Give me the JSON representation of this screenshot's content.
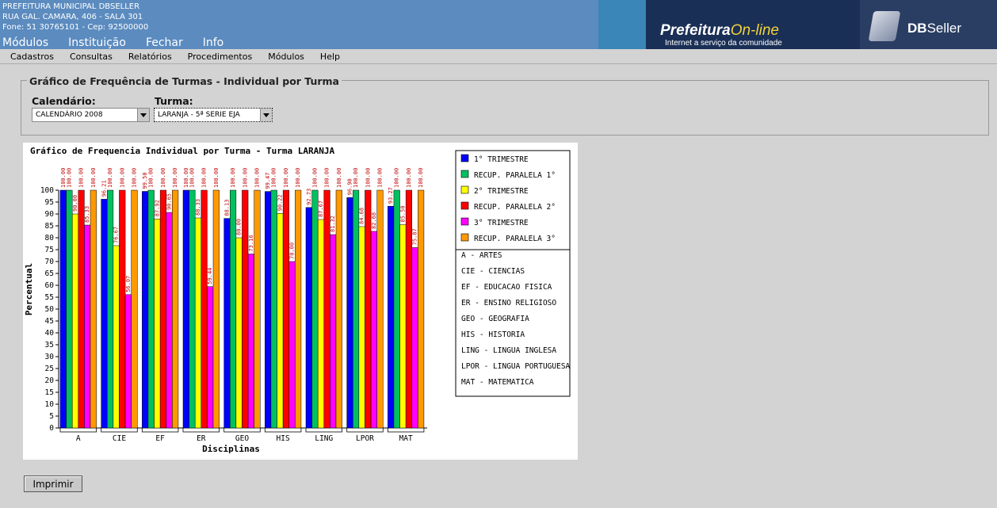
{
  "header": {
    "org_line1": "PREFEITURA MUNICIPAL DBSELLER",
    "org_line2": "RUA GAL. CAMARA, 406 - SALA 301",
    "org_line3": "Fone: 51 30765101  -  Cep: 92500000",
    "brand_prefix": "Prefeitura",
    "brand_suffix": "On-line",
    "brand_tagline": "Internet a serviço da comunidade",
    "vendor_bold": "DB",
    "vendor_rest": "Seller"
  },
  "top_menu": [
    "Módulos",
    "Instituição",
    "Fechar",
    "Info"
  ],
  "sub_menu": [
    "Cadastros",
    "Consultas",
    "Relatórios",
    "Procedimentos",
    "Módulos",
    "Help"
  ],
  "form": {
    "legend": "Gráfico de Frequência de Turmas - Individual por Turma",
    "calendario_label": "Calendário:",
    "calendario_value": "CALENDÁRIO 2008",
    "turma_label": "Turma:",
    "turma_value": "LARANJA - 5ª SERIE EJA"
  },
  "print_button": "Imprimir",
  "chart_data": {
    "type": "bar",
    "title": "Gráfico de Frequencia Individual por Turma - Turma LARANJA",
    "xlabel": "Disciplinas",
    "ylabel": "Percentual",
    "ylim": [
      0,
      100
    ],
    "yticks": [
      0,
      5,
      10,
      15,
      20,
      25,
      30,
      35,
      40,
      45,
      50,
      55,
      60,
      65,
      70,
      75,
      80,
      85,
      90,
      95,
      100
    ],
    "categories": [
      "A",
      "CIE",
      "EF",
      "ER",
      "GEO",
      "HIS",
      "LING",
      "LPOR",
      "MAT"
    ],
    "series": [
      {
        "name": "1° TRIMESTRE",
        "color": "#0000ff",
        "values": [
          100.0,
          96.21,
          99.5,
          100.0,
          88.13,
          99.47,
          92.73,
          96.9,
          93.27
        ]
      },
      {
        "name": "RECUP. PARALELA 1°",
        "color": "#00c060",
        "values": [
          100.0,
          100.0,
          100.0,
          100.0,
          100.0,
          100.0,
          100.0,
          100.0,
          100.0
        ]
      },
      {
        "name": "2° TRIMESTRE",
        "color": "#ffff00",
        "values": [
          90.0,
          76.67,
          87.92,
          88.33,
          80.0,
          90.22,
          87.67,
          84.68,
          85.5
        ]
      },
      {
        "name": "RECUP. PARALELA 2°",
        "color": "#ff0000",
        "values": [
          100.0,
          100.0,
          100.0,
          100.0,
          100.0,
          100.0,
          100.0,
          100.0,
          100.0
        ]
      },
      {
        "name": "3° TRIMESTRE",
        "color": "#ff00ff",
        "values": [
          85.33,
          56.07,
          90.65,
          59.44,
          73.16,
          70.0,
          81.32,
          82.68,
          75.87
        ]
      },
      {
        "name": "RECUP. PARALELA 3°",
        "color": "#ff9900",
        "values": [
          100.0,
          100.0,
          100.0,
          100.0,
          100.0,
          100.0,
          100.0,
          100.0,
          100.0
        ]
      }
    ],
    "glossary": [
      "A - ARTES",
      "CIE - CIENCIAS",
      "EF - EDUCACAO FISICA",
      "ER - ENSINO RELIGIOSO",
      "GEO - GEOGRAFIA",
      "HIS - HISTORIA",
      "LING - LINGUA INGLESA",
      "LPOR - LINGUA PORTUGUESA",
      "MAT - MATEMATICA"
    ],
    "legend_position": "right"
  }
}
